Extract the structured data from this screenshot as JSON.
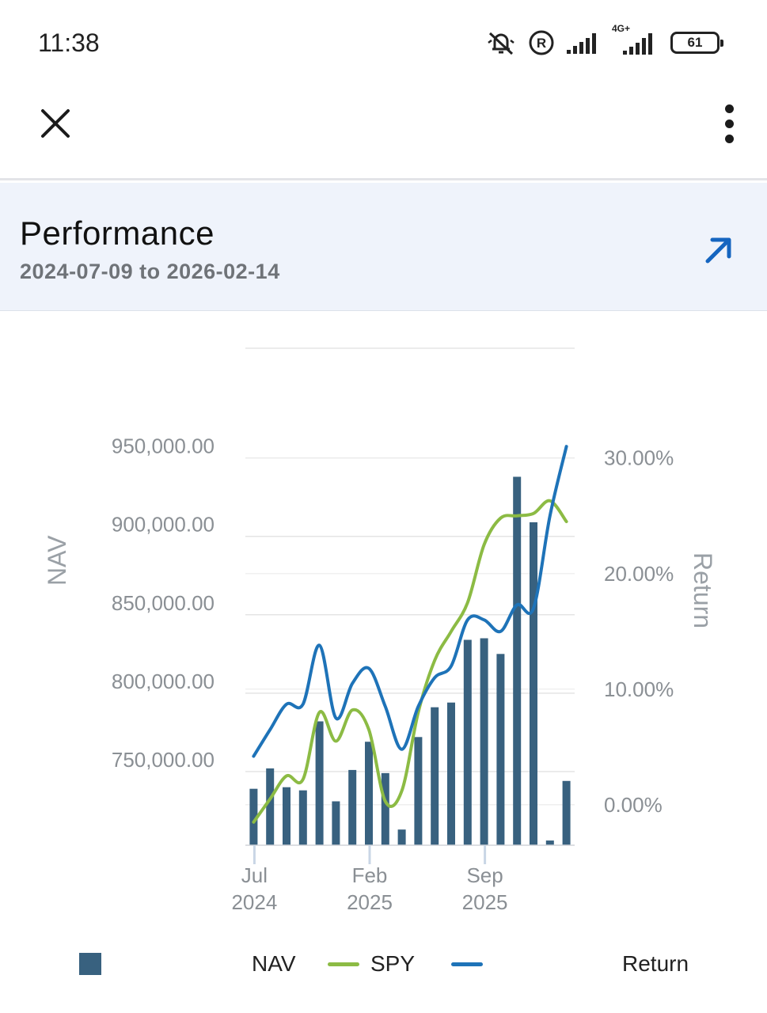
{
  "status_bar": {
    "time": "11:38",
    "network_label": "4G+",
    "battery_level": "61"
  },
  "app_bar": {
    "close_icon": "close-icon",
    "more_icon": "more-vertical-icon"
  },
  "performance": {
    "title": "Performance",
    "date_range": "2024-07-09 to 2026-02-14",
    "expand_icon": "arrow-up-right-icon",
    "accent_color": "#1565c0"
  },
  "chart_data": {
    "type": "bar",
    "x_ticks": [
      {
        "month": "Jul",
        "year": "2024"
      },
      {
        "month": "Feb",
        "year": "2025"
      },
      {
        "month": "Sep",
        "year": "2025"
      }
    ],
    "y_left": {
      "title": "NAV",
      "ticks": [
        "950,000.00",
        "900,000.00",
        "850,000.00",
        "800,000.00",
        "750,000.00"
      ],
      "tick_values": [
        950000,
        900000,
        850000,
        800000,
        750000
      ],
      "range": [
        703000,
        1020000
      ]
    },
    "y_right": {
      "title": "Return",
      "ticks": [
        "30.00%",
        "20.00%",
        "10.00%",
        "0.00%"
      ],
      "tick_values": [
        30,
        20,
        10,
        0
      ],
      "range": [
        -3.5,
        39.5
      ]
    },
    "grid": true,
    "series": [
      {
        "name": "NAV",
        "kind": "bar",
        "axis": "left",
        "color": "#38617f",
        "values": [
          739000,
          752000,
          740000,
          738000,
          782000,
          731000,
          751000,
          769000,
          749000,
          713000,
          772000,
          791000,
          794000,
          834000,
          835000,
          825000,
          938000,
          909000,
          706000,
          744000
        ]
      },
      {
        "name": "SPY",
        "kind": "line",
        "axis": "right",
        "color": "#8cbb44",
        "values": [
          -1.5,
          0.5,
          2.5,
          2.2,
          8.0,
          5.5,
          8.2,
          6.5,
          0.3,
          1.2,
          8.0,
          12.5,
          15.0,
          17.5,
          22.5,
          24.8,
          25.0,
          25.2,
          26.3,
          24.5
        ]
      },
      {
        "name": "Return",
        "kind": "line",
        "axis": "right",
        "color": "#1e73b8",
        "values": [
          4.2,
          6.5,
          8.7,
          8.7,
          13.8,
          7.5,
          10.5,
          11.8,
          8.5,
          4.8,
          8.5,
          11.0,
          12.0,
          16.0,
          16.0,
          15.0,
          17.3,
          17.0,
          25.0,
          31.0
        ]
      }
    ]
  },
  "legend": {
    "items": [
      {
        "label": "NAV"
      },
      {
        "label": "SPY"
      },
      {
        "label": "Return"
      }
    ]
  }
}
